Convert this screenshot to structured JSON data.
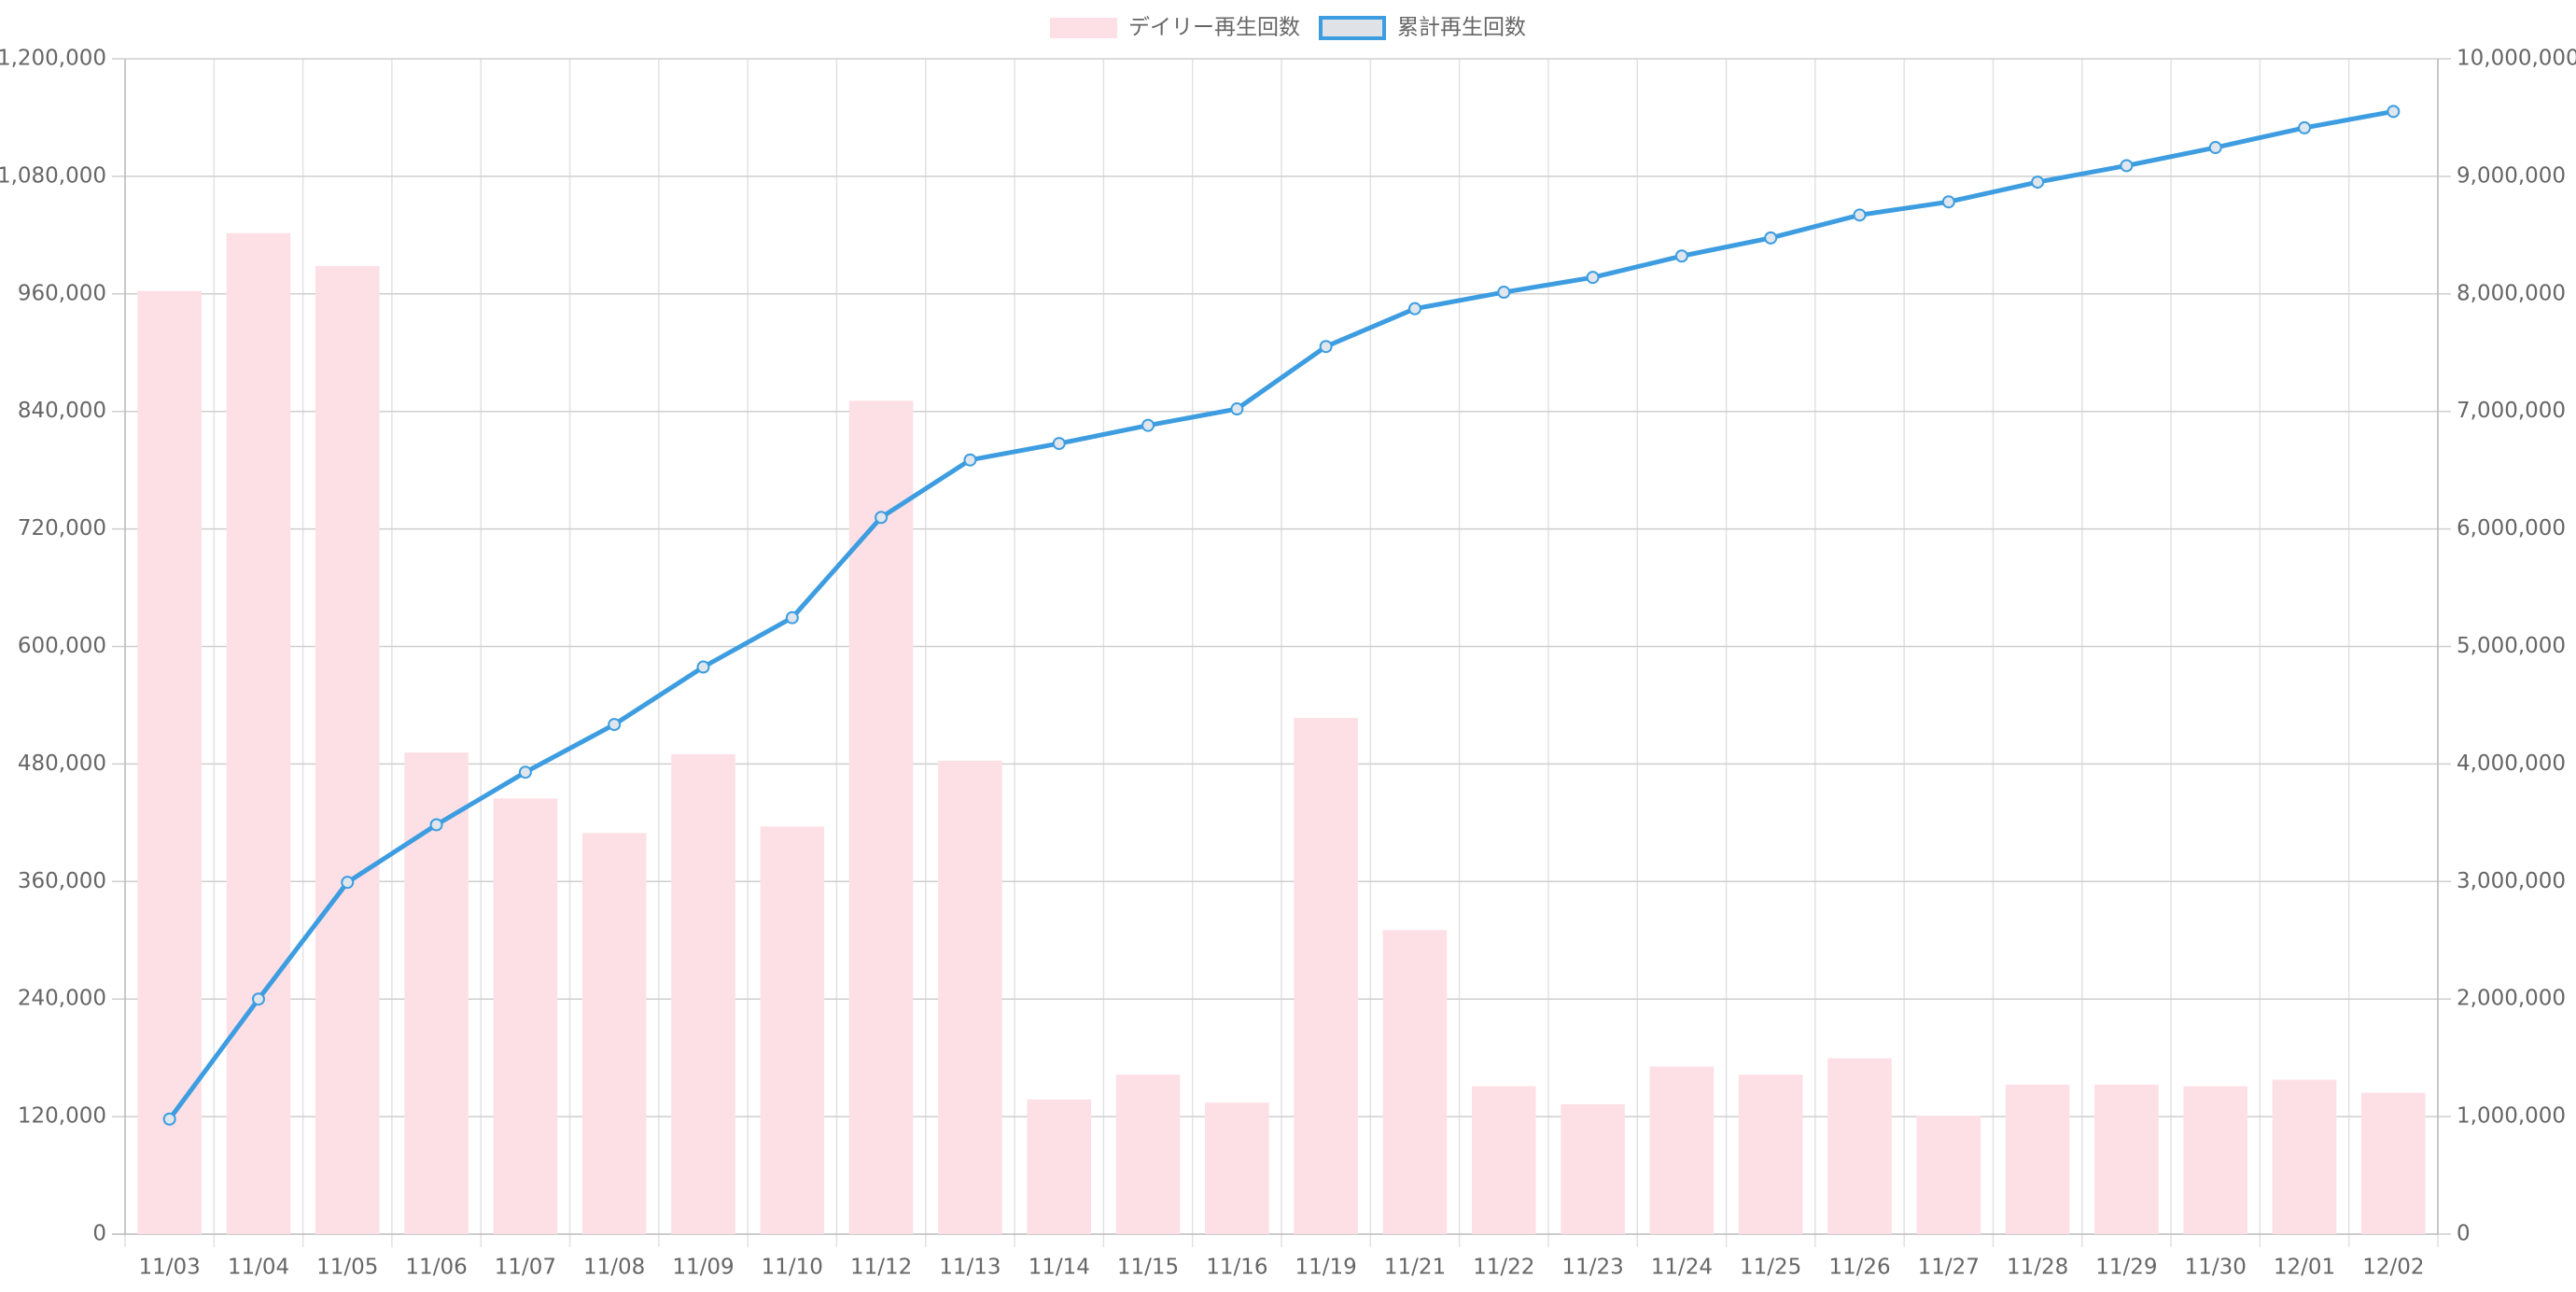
{
  "chart_data": {
    "type": "bar",
    "categories": [
      "11/03",
      "11/04",
      "11/05",
      "11/06",
      "11/07",
      "11/08",
      "11/09",
      "11/10",
      "11/12",
      "11/13",
      "11/14",
      "11/15",
      "11/16",
      "11/19",
      "11/21",
      "11/22",
      "11/23",
      "11/24",
      "11/25",
      "11/26",
      "11/27",
      "11/28",
      "11/29",
      "11/30",
      "12/01",
      "12/02"
    ],
    "series": [
      {
        "name": "デイリー再生回数",
        "type": "bar",
        "color": "#fde0e6",
        "values": [
          963000,
          1022000,
          988500,
          491700,
          444800,
          409500,
          490000,
          416200,
          850900,
          483400,
          137600,
          162800,
          134300,
          527000,
          310500,
          151000,
          132600,
          171200,
          162800,
          179600,
          120800,
          152700,
          152700,
          151000,
          157800,
          144300
        ]
      },
      {
        "name": "累計再生回数",
        "type": "line",
        "axis": "y2",
        "color": "#3d9de0",
        "values": [
          979000,
          2000000,
          2993000,
          3483000,
          3930000,
          4336000,
          4825000,
          5245000,
          6098000,
          6587000,
          6727000,
          6881000,
          7021000,
          7552000,
          7874000,
          8014000,
          8140000,
          8322000,
          8476000,
          8671000,
          8783000,
          8951000,
          9091000,
          9245000,
          9413000,
          9552000
        ]
      }
    ],
    "ylim": [
      0,
      1200000
    ],
    "yticks": [
      0,
      {
        "value": 120000,
        "label": "120,000"
      },
      {
        "value": 240000,
        "label": "240,000"
      },
      {
        "value": 360000,
        "label": "360,000"
      },
      {
        "value": 480000,
        "label": "480,000"
      },
      {
        "value": 600000,
        "label": "600,000"
      },
      {
        "value": 720000,
        "label": "720,000"
      },
      {
        "value": 840000,
        "label": "840,000"
      },
      {
        "value": 960000,
        "label": "960,000"
      },
      {
        "value": 1080000,
        "label": "1,080,000"
      },
      {
        "value": 1200000,
        "label": "1,200,000"
      }
    ],
    "y2lim": [
      0,
      10000000
    ],
    "y2ticks": [
      0,
      {
        "value": 1000000,
        "label": "1,000,000"
      },
      {
        "value": 2000000,
        "label": "2,000,000"
      },
      {
        "value": 3000000,
        "label": "3,000,000"
      },
      {
        "value": 4000000,
        "label": "4,000,000"
      },
      {
        "value": 5000000,
        "label": "5,000,000"
      },
      {
        "value": 6000000,
        "label": "6,000,000"
      },
      {
        "value": 7000000,
        "label": "7,000,000"
      },
      {
        "value": 8000000,
        "label": "8,000,000"
      },
      {
        "value": 9000000,
        "label": "9,000,000"
      },
      {
        "value": 10000000,
        "label": "10,000,000"
      }
    ],
    "grid": true,
    "legend": "top"
  }
}
